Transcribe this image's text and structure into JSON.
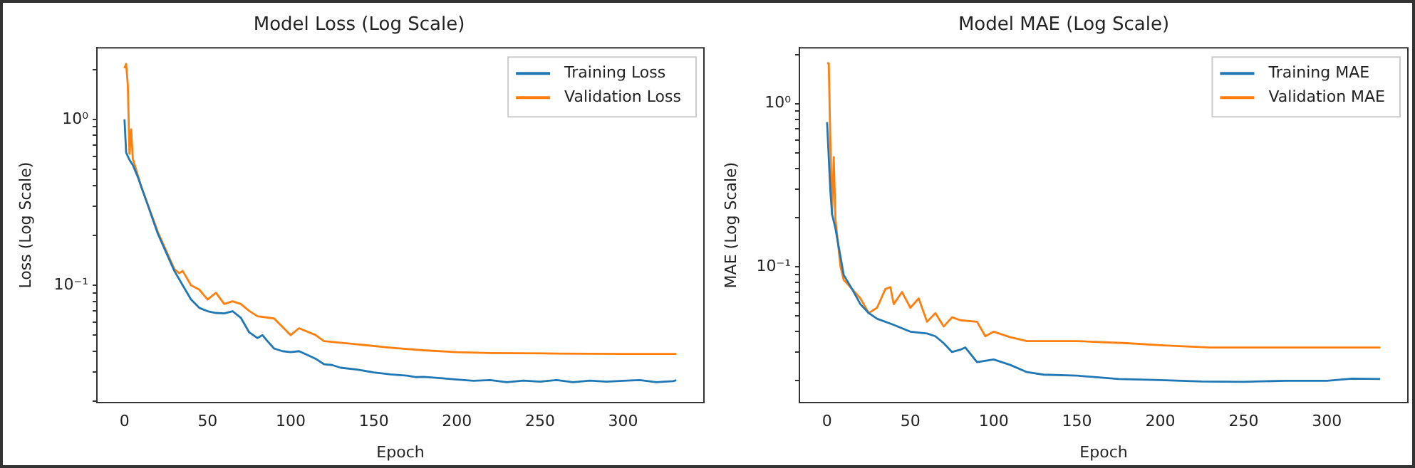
{
  "chart_data": [
    {
      "type": "line",
      "title": "Model Loss (Log Scale)",
      "xlabel": "Epoch",
      "ylabel": "Loss (Log Scale)",
      "log": "y",
      "legend": "top right",
      "xlim": [
        -16.6,
        348.6
      ],
      "xticks": [
        0,
        50,
        100,
        150,
        200,
        250,
        300
      ],
      "ylim": [
        0.0196,
        2.7
      ],
      "yticks": [
        {
          "value": 0.02,
          "label": null
        },
        {
          "value": 0.03,
          "label": null
        },
        {
          "value": 0.04,
          "label": null
        },
        {
          "value": 0.05,
          "label": null
        },
        {
          "value": 0.06,
          "label": null
        },
        {
          "value": 0.07,
          "label": null
        },
        {
          "value": 0.08,
          "label": null
        },
        {
          "value": 0.09,
          "label": null
        },
        {
          "value": 0.1,
          "label": "10⁻¹"
        },
        {
          "value": 0.2,
          "label": null
        },
        {
          "value": 0.3,
          "label": null
        },
        {
          "value": 0.4,
          "label": null
        },
        {
          "value": 0.5,
          "label": null
        },
        {
          "value": 0.6,
          "label": null
        },
        {
          "value": 0.7,
          "label": null
        },
        {
          "value": 0.8,
          "label": null
        },
        {
          "value": 0.9,
          "label": null
        },
        {
          "value": 1,
          "label": "10⁰"
        },
        {
          "value": 2,
          "label": null
        }
      ],
      "series": [
        {
          "name": "Training Loss",
          "color": "#1f77b4",
          "x": [
            0,
            1,
            3,
            5,
            8,
            10,
            15,
            20,
            25,
            30,
            35,
            40,
            45,
            50,
            55,
            60,
            65,
            68,
            70,
            75,
            80,
            83,
            86,
            90,
            95,
            100,
            105,
            110,
            115,
            120,
            125,
            130,
            140,
            150,
            160,
            170,
            175,
            180,
            190,
            200,
            210,
            220,
            230,
            240,
            250,
            260,
            270,
            280,
            290,
            300,
            310,
            320,
            330,
            332
          ],
          "values": [
            1.0,
            0.63,
            0.57,
            0.53,
            0.45,
            0.395,
            0.285,
            0.205,
            0.158,
            0.122,
            0.1,
            0.082,
            0.073,
            0.0697,
            0.068,
            0.0676,
            0.0697,
            0.066,
            0.0636,
            0.052,
            0.048,
            0.05,
            0.046,
            0.0415,
            0.04,
            0.0395,
            0.04,
            0.038,
            0.036,
            0.0334,
            0.033,
            0.0318,
            0.031,
            0.0298,
            0.029,
            0.0285,
            0.0279,
            0.028,
            0.0275,
            0.027,
            0.0265,
            0.0268,
            0.026,
            0.0266,
            0.0262,
            0.0268,
            0.026,
            0.0266,
            0.0262,
            0.0265,
            0.0268,
            0.026,
            0.0264,
            0.0267
          ]
        },
        {
          "name": "Validation Loss",
          "color": "#ff7f0e",
          "x": [
            0,
            1,
            2,
            3,
            4,
            5,
            10,
            20,
            30,
            33,
            35,
            40,
            45,
            50,
            55,
            60,
            65,
            70,
            75,
            80,
            90,
            100,
            105,
            115,
            120,
            140,
            160,
            180,
            200,
            220,
            260,
            300,
            332
          ],
          "values": [
            2.03,
            2.16,
            1.61,
            0.62,
            0.87,
            0.58,
            0.395,
            0.21,
            0.125,
            0.118,
            0.122,
            0.1,
            0.094,
            0.082,
            0.09,
            0.077,
            0.08,
            0.077,
            0.07,
            0.065,
            0.063,
            0.05,
            0.055,
            0.05,
            0.046,
            0.044,
            0.042,
            0.0405,
            0.0395,
            0.039,
            0.0387,
            0.0385,
            0.0385
          ]
        }
      ]
    },
    {
      "type": "line",
      "title": "Model MAE (Log Scale)",
      "xlabel": "Epoch",
      "ylabel": "MAE (Log Scale)",
      "log": "y",
      "legend": "top right",
      "xlim": [
        -16.6,
        348.6
      ],
      "xticks": [
        0,
        50,
        100,
        150,
        200,
        250,
        300
      ],
      "ylim": [
        0.0147,
        2.2
      ],
      "yticks": [
        {
          "value": 0.02,
          "label": null
        },
        {
          "value": 0.03,
          "label": null
        },
        {
          "value": 0.04,
          "label": null
        },
        {
          "value": 0.05,
          "label": null
        },
        {
          "value": 0.06,
          "label": null
        },
        {
          "value": 0.07,
          "label": null
        },
        {
          "value": 0.08,
          "label": null
        },
        {
          "value": 0.09,
          "label": null
        },
        {
          "value": 0.1,
          "label": "10⁻¹"
        },
        {
          "value": 0.2,
          "label": null
        },
        {
          "value": 0.3,
          "label": null
        },
        {
          "value": 0.4,
          "label": null
        },
        {
          "value": 0.5,
          "label": null
        },
        {
          "value": 0.6,
          "label": null
        },
        {
          "value": 0.7,
          "label": null
        },
        {
          "value": 0.8,
          "label": null
        },
        {
          "value": 0.9,
          "label": null
        },
        {
          "value": 1,
          "label": "10⁰"
        },
        {
          "value": 2,
          "label": null
        }
      ],
      "series": [
        {
          "name": "Training MAE",
          "color": "#1f77b4",
          "x": [
            0,
            1,
            2,
            3,
            5,
            8,
            10,
            15,
            20,
            25,
            30,
            40,
            50,
            60,
            65,
            70,
            75,
            80,
            83,
            90,
            100,
            110,
            120,
            130,
            150,
            175,
            200,
            225,
            250,
            275,
            300,
            315,
            332
          ],
          "values": [
            0.77,
            0.47,
            0.29,
            0.21,
            0.172,
            0.116,
            0.089,
            0.073,
            0.059,
            0.052,
            0.048,
            0.044,
            0.04,
            0.039,
            0.0375,
            0.034,
            0.03,
            0.031,
            0.032,
            0.026,
            0.027,
            0.025,
            0.0226,
            0.0218,
            0.0215,
            0.0205,
            0.0202,
            0.0198,
            0.0197,
            0.02,
            0.02,
            0.0206,
            0.0205
          ]
        },
        {
          "name": "Validation MAE",
          "color": "#ff7f0e",
          "x": [
            0,
            1,
            2,
            3,
            4,
            5,
            8,
            10,
            15,
            20,
            25,
            30,
            35,
            38,
            40,
            45,
            50,
            55,
            60,
            65,
            70,
            75,
            80,
            90,
            95,
            100,
            110,
            120,
            140,
            150,
            180,
            200,
            230,
            332
          ],
          "values": [
            1.77,
            1.77,
            0.57,
            0.21,
            0.47,
            0.197,
            0.101,
            0.083,
            0.073,
            0.064,
            0.052,
            0.056,
            0.073,
            0.075,
            0.059,
            0.07,
            0.056,
            0.064,
            0.046,
            0.052,
            0.043,
            0.049,
            0.047,
            0.046,
            0.0375,
            0.04,
            0.037,
            0.035,
            0.035,
            0.035,
            0.034,
            0.033,
            0.032,
            0.032
          ]
        }
      ]
    }
  ]
}
